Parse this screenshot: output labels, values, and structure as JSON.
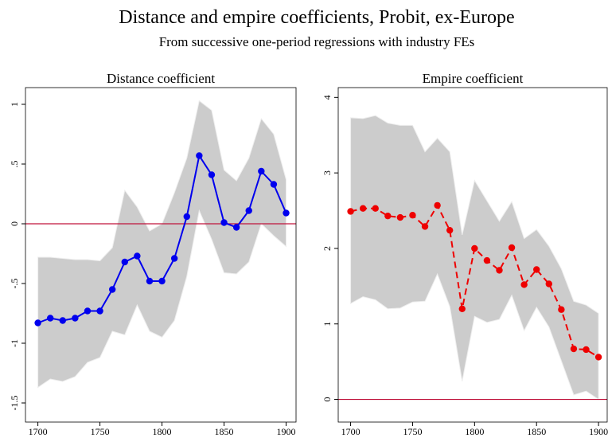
{
  "title": "Distance and empire coefficients, Probit, ex-Europe",
  "subtitle": "From successive one-period regressions with industry FEs",
  "chart_data": [
    {
      "type": "line",
      "title": "Distance coefficient",
      "x": [
        1700,
        1710,
        1720,
        1730,
        1740,
        1750,
        1760,
        1770,
        1780,
        1790,
        1800,
        1810,
        1820,
        1830,
        1840,
        1850,
        1860,
        1870,
        1880,
        1890,
        1900
      ],
      "values": [
        -0.83,
        -0.79,
        -0.81,
        -0.79,
        -0.73,
        -0.73,
        -0.55,
        -0.32,
        -0.27,
        -0.48,
        -0.48,
        -0.29,
        0.06,
        0.57,
        0.41,
        0.01,
        -0.03,
        0.11,
        0.44,
        0.33,
        0.09
      ],
      "upper": [
        -0.28,
        -0.28,
        -0.29,
        -0.3,
        -0.3,
        -0.31,
        -0.2,
        0.28,
        0.14,
        -0.06,
        0.0,
        0.26,
        0.55,
        1.03,
        0.95,
        0.45,
        0.36,
        0.55,
        0.88,
        0.75,
        0.37
      ],
      "lower": [
        -1.37,
        -1.3,
        -1.32,
        -1.28,
        -1.16,
        -1.12,
        -0.9,
        -0.93,
        -0.68,
        -0.9,
        -0.95,
        -0.81,
        -0.44,
        0.11,
        -0.13,
        -0.41,
        -0.42,
        -0.32,
        0.0,
        -0.1,
        -0.19
      ],
      "color": "#0000ee",
      "band_color": "#cccccc",
      "dashed": false,
      "reference_line": 0,
      "reference_color": "#c0143c",
      "xlim": [
        1690,
        1908
      ],
      "ylim": [
        -1.66,
        1.14
      ],
      "xticks": [
        1700,
        1750,
        1800,
        1850,
        1900
      ],
      "yticks": [
        1,
        {
          "value": 0.5,
          "label": ".5"
        },
        0,
        {
          "value": -0.5,
          "label": "-.5"
        },
        -1,
        -1.5
      ]
    },
    {
      "type": "line",
      "title": "Empire coefficient",
      "x": [
        1700,
        1710,
        1720,
        1730,
        1740,
        1750,
        1760,
        1770,
        1780,
        1790,
        1800,
        1810,
        1820,
        1830,
        1840,
        1850,
        1860,
        1870,
        1880,
        1890,
        1900
      ],
      "values": [
        2.49,
        2.53,
        2.53,
        2.43,
        2.41,
        2.44,
        2.29,
        2.57,
        2.24,
        1.2,
        2.0,
        1.84,
        1.71,
        2.01,
        1.52,
        1.72,
        1.53,
        1.19,
        0.67,
        0.66,
        0.56
      ],
      "upper": [
        3.73,
        3.72,
        3.76,
        3.66,
        3.63,
        3.63,
        3.28,
        3.46,
        3.28,
        2.18,
        2.9,
        2.63,
        2.36,
        2.62,
        2.13,
        2.25,
        2.03,
        1.73,
        1.3,
        1.25,
        1.14
      ],
      "lower": [
        1.27,
        1.36,
        1.32,
        1.2,
        1.21,
        1.29,
        1.3,
        1.66,
        1.23,
        0.24,
        1.1,
        1.02,
        1.06,
        1.38,
        0.91,
        1.22,
        0.96,
        0.51,
        0.06,
        0.11,
        0.0
      ],
      "color": "#ee0000",
      "band_color": "#cccccc",
      "dashed": true,
      "reference_line": 0,
      "reference_color": "#c0143c",
      "xlim": [
        1690,
        1907
      ],
      "ylim": [
        -0.3,
        4.13
      ],
      "xticks": [
        1700,
        1750,
        1800,
        1850,
        1900
      ],
      "yticks": [
        0,
        1,
        2,
        3,
        4
      ]
    }
  ]
}
